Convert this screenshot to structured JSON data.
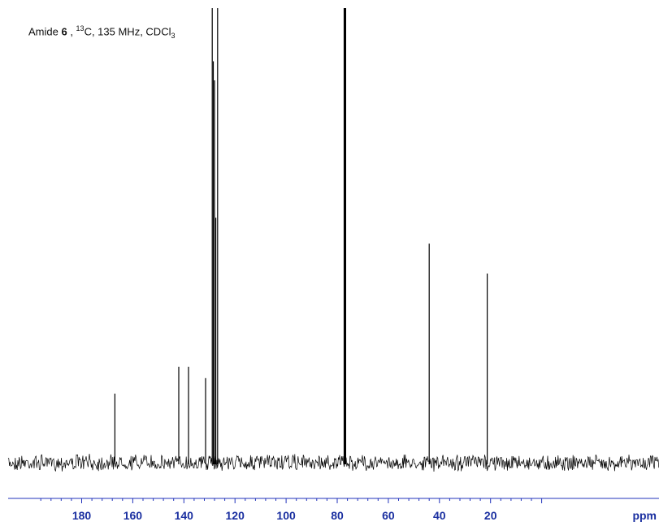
{
  "chart_data": {
    "type": "line",
    "title_parts": {
      "prefix": "Amide ",
      "compound": "6",
      "sep": " , ",
      "isotope_mass": "13",
      "isotope_symbol": "C, 135 MHz, CDCl",
      "sub": "3"
    },
    "xlabel": "ppm",
    "xlim": [
      200,
      0
    ],
    "x_reversed": true,
    "x_ticks": [
      180,
      160,
      140,
      120,
      100,
      80,
      60,
      40,
      20
    ],
    "x_tick_labels": [
      "180",
      "160",
      "140",
      "120",
      "100",
      "80",
      "60",
      "40",
      "20"
    ],
    "ylim": [
      0,
      1
    ],
    "y_axis_shown": false,
    "grid": false,
    "series": [
      {
        "peaks": [
          {
            "x": 167.0,
            "y": 0.152
          },
          {
            "x": 142.0,
            "y": 0.211
          },
          {
            "x": 138.2,
            "y": 0.211
          },
          {
            "x": 131.5,
            "y": 0.186
          },
          {
            "x": 128.9,
            "y": 1.0
          },
          {
            "x": 128.5,
            "y": 0.883
          },
          {
            "x": 128.0,
            "y": 0.841
          },
          {
            "x": 127.5,
            "y": 0.539
          },
          {
            "x": 126.8,
            "y": 1.0
          },
          {
            "x": 77.3,
            "y": 1.0
          },
          {
            "x": 77.0,
            "y": 1.0
          },
          {
            "x": 76.7,
            "y": 1.0
          },
          {
            "x": 44.0,
            "y": 0.482
          },
          {
            "x": 21.3,
            "y": 0.416
          }
        ]
      }
    ],
    "colors": {
      "trace": "#000000",
      "axis": "#2233bb",
      "tick_label": "#1a2fa0"
    }
  }
}
